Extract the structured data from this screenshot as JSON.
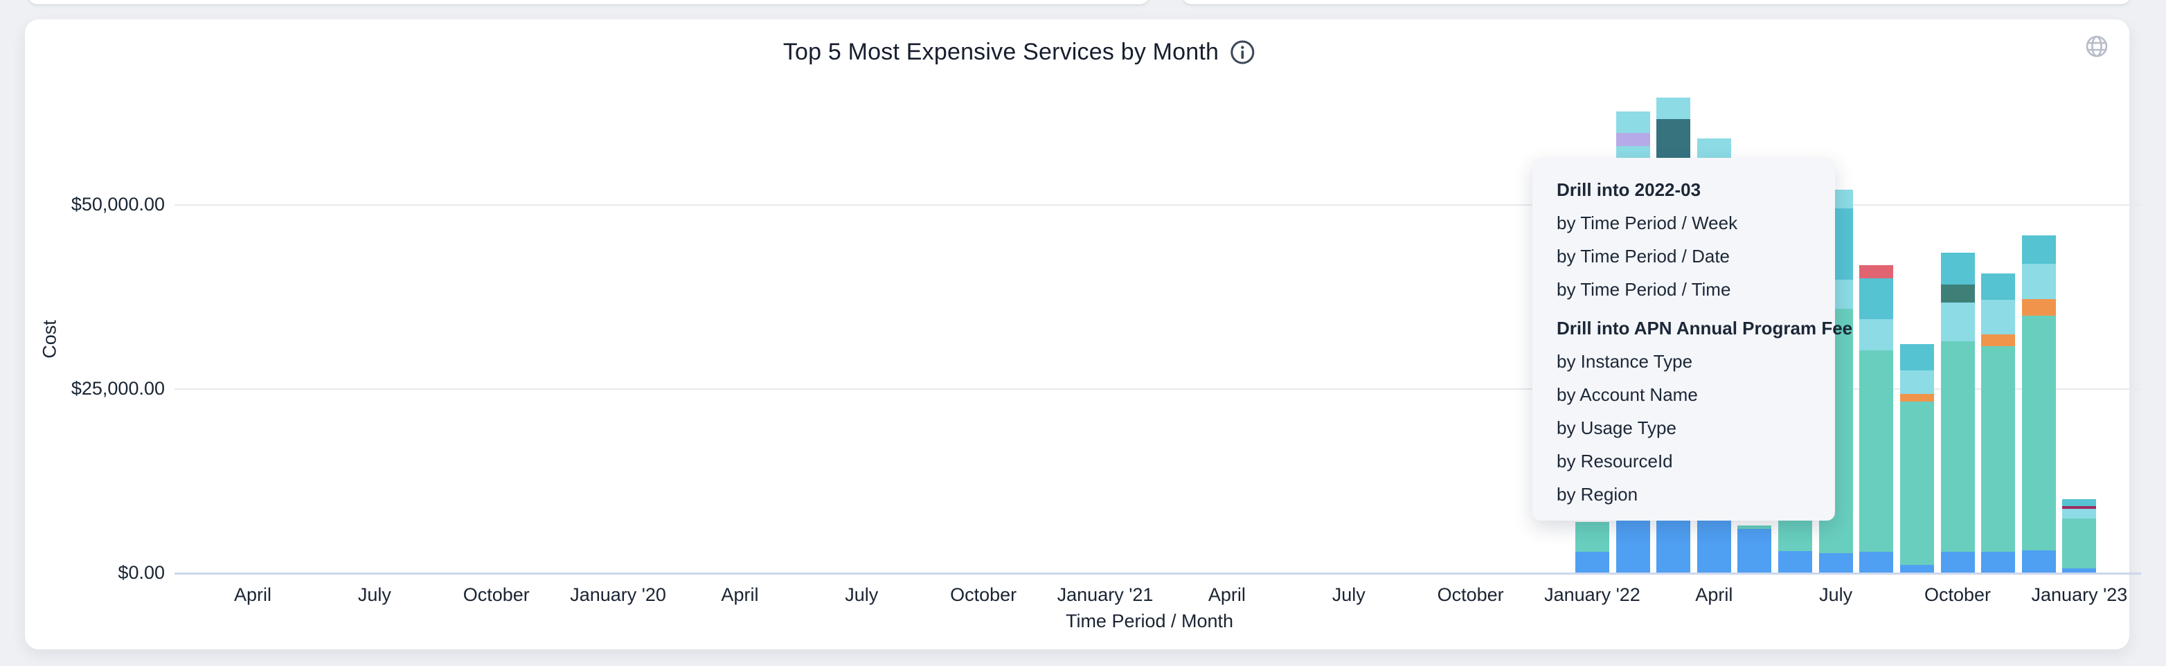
{
  "card": {
    "title": "Top 5 Most Expensive Services by Month",
    "icons": {
      "title_info": "info-circle",
      "card_action": "globe"
    }
  },
  "menu": {
    "sections": [
      {
        "header": "Drill into 2022-03",
        "items": [
          "by Time Period / Week",
          "by Time Period / Date",
          "by Time Period / Time"
        ]
      },
      {
        "header": "Drill into APN Annual Program Fee",
        "items": [
          "by Instance Type",
          "by Account Name",
          "by Usage Type",
          "by ResourceId",
          "by Region"
        ]
      }
    ]
  },
  "chart_data": {
    "type": "bar",
    "stacked": true,
    "title": "Top 5 Most Expensive Services by Month",
    "xlabel": "Time Period / Month",
    "ylabel": "Cost",
    "grid": true,
    "legend": "none",
    "ylim": [
      0,
      65000
    ],
    "y_axis": {
      "label": "Cost",
      "ticks": [
        {
          "value": 0,
          "label": "$0.00"
        },
        {
          "value": 25000,
          "label": "$25,000.00"
        },
        {
          "value": 50000,
          "label": "$50,000.00"
        }
      ]
    },
    "x_axis": {
      "label": "Time Period / Month",
      "ticks": [
        "April",
        "July",
        "October",
        "January '20",
        "April",
        "July",
        "October",
        "January '21",
        "April",
        "July",
        "October",
        "January '22",
        "April",
        "July",
        "October",
        "January '23"
      ]
    },
    "colors": {
      "blue": "#4f9ff2",
      "green": "#68cfbe",
      "light_cyan": "#8cdbe5",
      "teal": "#55c3d2",
      "dark_teal": "#36737f",
      "dark_green": "#3e8078",
      "red": "#e06471",
      "orange": "#f0944b",
      "purple": "#b6aae8",
      "maroon": "#9c2d62"
    },
    "bars": [
      {
        "month": "2022-01",
        "total": 6900,
        "segments": [
          {
            "color": "blue",
            "value": 2800
          },
          {
            "color": "green",
            "value": 4100
          }
        ]
      },
      {
        "month": "2022-02",
        "total": 62500,
        "segments": [
          {
            "color": "blue",
            "value": 8000
          },
          {
            "color": "green",
            "value": 45700
          },
          {
            "color": "light_cyan",
            "value": 4100
          },
          {
            "color": "purple",
            "value": 1800
          },
          {
            "color": "light_cyan",
            "value": 2900
          }
        ]
      },
      {
        "month": "2022-03",
        "total": 64400,
        "segments": [
          {
            "color": "blue",
            "value": 8000
          },
          {
            "color": "green",
            "value": 37000
          },
          {
            "color": "light_cyan",
            "value": 5000
          },
          {
            "color": "dark_teal",
            "value": 11500
          },
          {
            "color": "light_cyan",
            "value": 2900
          }
        ]
      },
      {
        "month": "2022-04",
        "total": 58900,
        "segments": [
          {
            "color": "blue",
            "value": 8000
          },
          {
            "color": "green",
            "value": 44000
          },
          {
            "color": "light_cyan",
            "value": 6900
          }
        ]
      },
      {
        "month": "2022-05",
        "total": 6400,
        "segments": [
          {
            "color": "blue",
            "value": 5900
          },
          {
            "color": "green",
            "value": 500
          }
        ]
      },
      {
        "month": "2022-06",
        "total": 7000,
        "segments": [
          {
            "color": "blue",
            "value": 2900
          },
          {
            "color": "green",
            "value": 4100
          }
        ]
      },
      {
        "month": "2022-07",
        "total": 51900,
        "segments": [
          {
            "color": "blue",
            "value": 2600
          },
          {
            "color": "green",
            "value": 33200
          },
          {
            "color": "light_cyan",
            "value": 3900
          },
          {
            "color": "teal",
            "value": 9700
          },
          {
            "color": "light_cyan",
            "value": 2500
          }
        ]
      },
      {
        "month": "2022-08",
        "total": 41700,
        "segments": [
          {
            "color": "blue",
            "value": 2800
          },
          {
            "color": "green",
            "value": 27300
          },
          {
            "color": "light_cyan",
            "value": 4300
          },
          {
            "color": "teal",
            "value": 5500
          },
          {
            "color": "red",
            "value": 1800
          }
        ]
      },
      {
        "month": "2022-09",
        "total": 31000,
        "segments": [
          {
            "color": "blue",
            "value": 1000
          },
          {
            "color": "green",
            "value": 22200
          },
          {
            "color": "orange",
            "value": 1000
          },
          {
            "color": "light_cyan",
            "value": 3200
          },
          {
            "color": "teal",
            "value": 3600
          }
        ]
      },
      {
        "month": "2022-10",
        "total": 43400,
        "segments": [
          {
            "color": "blue",
            "value": 2800
          },
          {
            "color": "green",
            "value": 28600
          },
          {
            "color": "light_cyan",
            "value": 5200
          },
          {
            "color": "dark_green",
            "value": 2500
          },
          {
            "color": "teal",
            "value": 4300
          }
        ]
      },
      {
        "month": "2022-11",
        "total": 40600,
        "segments": [
          {
            "color": "blue",
            "value": 2800
          },
          {
            "color": "green",
            "value": 27900
          },
          {
            "color": "orange",
            "value": 1600
          },
          {
            "color": "light_cyan",
            "value": 4700
          },
          {
            "color": "teal",
            "value": 3600
          }
        ]
      },
      {
        "month": "2022-12",
        "total": 45700,
        "segments": [
          {
            "color": "blue",
            "value": 3000
          },
          {
            "color": "green",
            "value": 31800
          },
          {
            "color": "orange",
            "value": 2300
          },
          {
            "color": "light_cyan",
            "value": 4800
          },
          {
            "color": "teal",
            "value": 3800
          }
        ]
      },
      {
        "month": "2023-01",
        "total": 10000,
        "segments": [
          {
            "color": "blue",
            "value": 600
          },
          {
            "color": "green",
            "value": 6700
          },
          {
            "color": "light_cyan",
            "value": 1300
          },
          {
            "color": "maroon",
            "value": 400
          },
          {
            "color": "teal",
            "value": 1000
          }
        ]
      }
    ]
  }
}
